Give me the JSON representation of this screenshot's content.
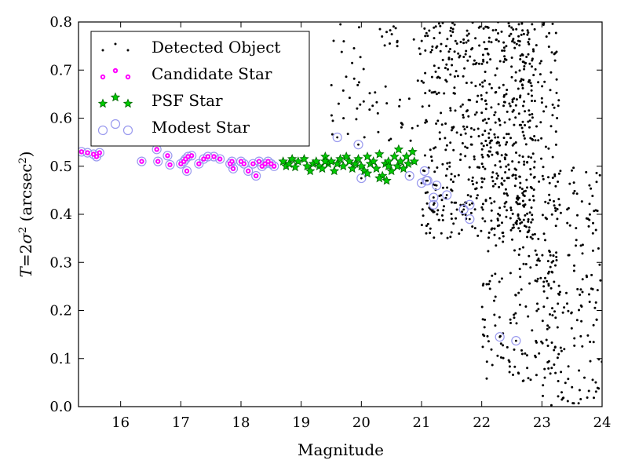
{
  "chart_data": {
    "type": "scatter",
    "xlabel": "Magnitude",
    "ylabel_text": "T = 2σ² (arcsec²)",
    "xlim": [
      15.3,
      24
    ],
    "ylim": [
      0.0,
      0.8
    ],
    "x_ticks": [
      "16",
      "17",
      "18",
      "19",
      "20",
      "21",
      "22",
      "23",
      "24"
    ],
    "y_ticks": [
      "0.0",
      "0.1",
      "0.2",
      "0.3",
      "0.4",
      "0.5",
      "0.6",
      "0.7",
      "0.8"
    ],
    "grid": false,
    "legend_position": "top-left",
    "colors": {
      "detected": "#000000",
      "candidate": "#ff00ff",
      "psf_face": "#00cc00",
      "psf_edge": "#006400",
      "modest": "#9999ee"
    },
    "legend": [
      {
        "key": "detected",
        "label": "Detected Object"
      },
      {
        "key": "candidate",
        "label": "Candidate Star"
      },
      {
        "key": "psf",
        "label": "PSF Star"
      },
      {
        "key": "modest",
        "label": "Modest Star"
      }
    ],
    "series": [
      {
        "name": "Modest Star",
        "key": "modest",
        "points": [
          [
            15.35,
            0.53
          ],
          [
            15.45,
            0.528
          ],
          [
            15.55,
            0.525
          ],
          [
            15.6,
            0.52
          ],
          [
            15.65,
            0.528
          ],
          [
            16.35,
            0.51
          ],
          [
            16.6,
            0.535
          ],
          [
            16.62,
            0.51
          ],
          [
            16.78,
            0.522
          ],
          [
            16.82,
            0.503
          ],
          [
            17.0,
            0.505
          ],
          [
            17.05,
            0.51
          ],
          [
            17.08,
            0.515
          ],
          [
            17.1,
            0.49
          ],
          [
            17.12,
            0.52
          ],
          [
            17.18,
            0.522
          ],
          [
            17.3,
            0.505
          ],
          [
            17.38,
            0.515
          ],
          [
            17.45,
            0.52
          ],
          [
            17.55,
            0.52
          ],
          [
            17.65,
            0.515
          ],
          [
            17.82,
            0.505
          ],
          [
            17.85,
            0.51
          ],
          [
            17.87,
            0.495
          ],
          [
            18.0,
            0.51
          ],
          [
            18.05,
            0.505
          ],
          [
            18.12,
            0.49
          ],
          [
            18.2,
            0.505
          ],
          [
            18.25,
            0.48
          ],
          [
            18.3,
            0.51
          ],
          [
            18.35,
            0.5
          ],
          [
            18.4,
            0.505
          ],
          [
            18.45,
            0.51
          ],
          [
            18.5,
            0.505
          ],
          [
            18.55,
            0.5
          ],
          [
            19.6,
            0.56
          ],
          [
            19.95,
            0.545
          ],
          [
            20.0,
            0.475
          ],
          [
            20.8,
            0.48
          ],
          [
            21.05,
            0.49
          ],
          [
            21.0,
            0.465
          ],
          [
            21.08,
            0.47
          ],
          [
            21.1,
            0.47
          ],
          [
            21.2,
            0.42
          ],
          [
            21.2,
            0.435
          ],
          [
            21.25,
            0.46
          ],
          [
            21.42,
            0.44
          ],
          [
            21.7,
            0.41
          ],
          [
            21.8,
            0.42
          ],
          [
            21.8,
            0.39
          ],
          [
            22.3,
            0.145
          ],
          [
            22.57,
            0.137
          ]
        ]
      },
      {
        "name": "Candidate Star",
        "key": "candidate",
        "points": [
          [
            15.35,
            0.53
          ],
          [
            15.45,
            0.528
          ],
          [
            15.55,
            0.525
          ],
          [
            15.6,
            0.52
          ],
          [
            15.65,
            0.528
          ],
          [
            16.35,
            0.51
          ],
          [
            16.6,
            0.535
          ],
          [
            16.62,
            0.51
          ],
          [
            16.78,
            0.522
          ],
          [
            16.82,
            0.503
          ],
          [
            17.0,
            0.505
          ],
          [
            17.05,
            0.51
          ],
          [
            17.08,
            0.515
          ],
          [
            17.1,
            0.49
          ],
          [
            17.12,
            0.52
          ],
          [
            17.18,
            0.522
          ],
          [
            17.3,
            0.505
          ],
          [
            17.38,
            0.515
          ],
          [
            17.45,
            0.52
          ],
          [
            17.55,
            0.52
          ],
          [
            17.65,
            0.515
          ],
          [
            17.82,
            0.505
          ],
          [
            17.85,
            0.51
          ],
          [
            17.87,
            0.495
          ],
          [
            18.0,
            0.51
          ],
          [
            18.05,
            0.505
          ],
          [
            18.12,
            0.49
          ],
          [
            18.2,
            0.505
          ],
          [
            18.25,
            0.48
          ],
          [
            18.3,
            0.51
          ],
          [
            18.35,
            0.5
          ],
          [
            18.4,
            0.505
          ],
          [
            18.45,
            0.51
          ],
          [
            18.5,
            0.505
          ],
          [
            18.55,
            0.5
          ]
        ]
      },
      {
        "name": "PSF Star",
        "key": "psf",
        "points": [
          [
            18.7,
            0.51
          ],
          [
            18.75,
            0.5
          ],
          [
            18.8,
            0.505
          ],
          [
            18.85,
            0.515
          ],
          [
            18.9,
            0.498
          ],
          [
            18.95,
            0.51
          ],
          [
            19.05,
            0.515
          ],
          [
            19.1,
            0.5
          ],
          [
            19.15,
            0.49
          ],
          [
            19.2,
            0.505
          ],
          [
            19.25,
            0.51
          ],
          [
            19.3,
            0.5
          ],
          [
            19.35,
            0.495
          ],
          [
            19.4,
            0.52
          ],
          [
            19.45,
            0.505
          ],
          [
            19.5,
            0.51
          ],
          [
            19.55,
            0.49
          ],
          [
            19.6,
            0.505
          ],
          [
            19.65,
            0.515
          ],
          [
            19.7,
            0.5
          ],
          [
            19.75,
            0.52
          ],
          [
            19.8,
            0.51
          ],
          [
            19.85,
            0.495
          ],
          [
            19.9,
            0.505
          ],
          [
            19.95,
            0.515
          ],
          [
            20.0,
            0.5
          ],
          [
            20.05,
            0.49
          ],
          [
            20.1,
            0.52
          ],
          [
            20.15,
            0.505
          ],
          [
            20.2,
            0.51
          ],
          [
            20.25,
            0.495
          ],
          [
            20.3,
            0.525
          ],
          [
            20.35,
            0.48
          ],
          [
            20.4,
            0.505
          ],
          [
            20.42,
            0.47
          ],
          [
            20.45,
            0.51
          ],
          [
            20.5,
            0.49
          ],
          [
            20.55,
            0.52
          ],
          [
            20.6,
            0.5
          ],
          [
            20.62,
            0.535
          ],
          [
            20.65,
            0.51
          ],
          [
            20.7,
            0.495
          ],
          [
            20.75,
            0.52
          ],
          [
            20.78,
            0.505
          ],
          [
            20.85,
            0.53
          ],
          [
            20.88,
            0.51
          ],
          [
            20.1,
            0.485
          ],
          [
            20.3,
            0.475
          ],
          [
            19.4,
            0.51
          ],
          [
            20.45,
            0.5
          ]
        ]
      }
    ],
    "detected_scatter": {
      "n": 1100,
      "description_free": true
    }
  }
}
